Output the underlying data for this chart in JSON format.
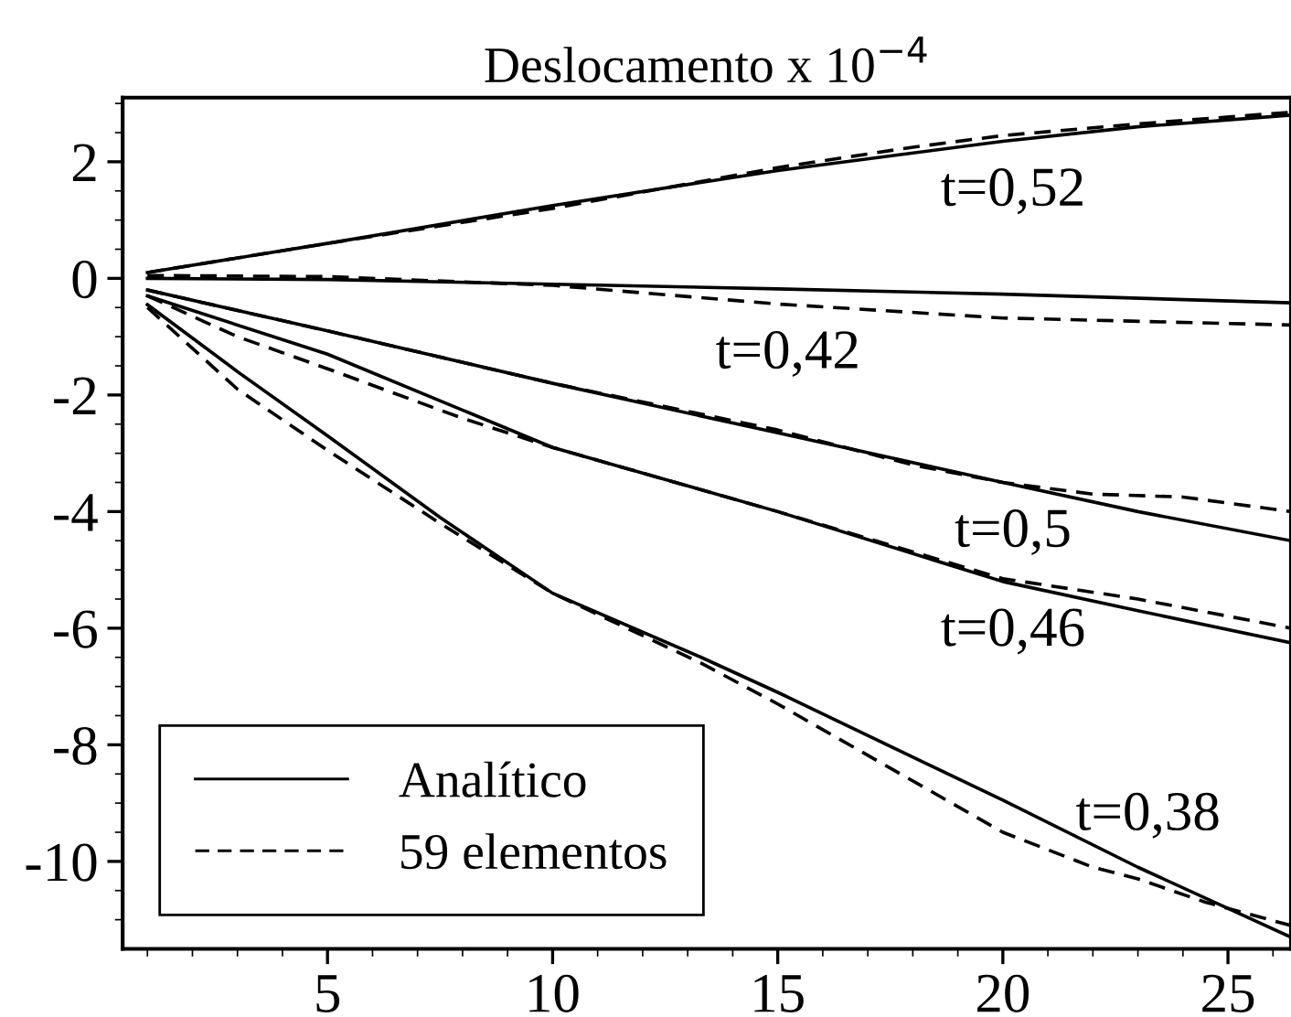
{
  "chart_data": {
    "type": "line",
    "title": "Deslocamento x 10$^{−4}$",
    "xlim": [
      0.45,
      26.4
    ],
    "ylim": [
      -11.5,
      3.1
    ],
    "xticks": [
      {
        "value": 1,
        "label": null
      },
      {
        "value": 2,
        "label": null
      },
      {
        "value": 3,
        "label": null
      },
      {
        "value": 4,
        "label": null
      },
      5,
      {
        "value": 6,
        "label": null
      },
      {
        "value": 7,
        "label": null
      },
      {
        "value": 8,
        "label": null
      },
      {
        "value": 9,
        "label": null
      },
      10,
      {
        "value": 11,
        "label": null
      },
      {
        "value": 12,
        "label": null
      },
      {
        "value": 13,
        "label": null
      },
      {
        "value": 14,
        "label": null
      },
      15,
      {
        "value": 16,
        "label": null
      },
      {
        "value": 17,
        "label": null
      },
      {
        "value": 18,
        "label": null
      },
      {
        "value": 19,
        "label": null
      },
      20,
      {
        "value": 21,
        "label": null
      },
      {
        "value": 22,
        "label": null
      },
      {
        "value": 23,
        "label": null
      },
      {
        "value": 24,
        "label": null
      },
      25,
      {
        "value": 26,
        "label": null
      }
    ],
    "yticks": [
      {
        "value": -11,
        "label": null
      },
      {
        "value": -10.5,
        "label": null
      },
      -10,
      {
        "value": -9.5,
        "label": null
      },
      {
        "value": -9,
        "label": null
      },
      {
        "value": -8.5,
        "label": null
      },
      -8,
      {
        "value": -7.5,
        "label": null
      },
      {
        "value": -7,
        "label": null
      },
      {
        "value": -6.5,
        "label": null
      },
      -6,
      {
        "value": -5.5,
        "label": null
      },
      {
        "value": -5,
        "label": null
      },
      {
        "value": -4.5,
        "label": null
      },
      -4,
      {
        "value": -3.5,
        "label": null
      },
      {
        "value": -3,
        "label": null
      },
      {
        "value": -2.5,
        "label": null
      },
      -2,
      {
        "value": -1.5,
        "label": null
      },
      {
        "value": -1,
        "label": null
      },
      {
        "value": -0.5,
        "label": null
      },
      0,
      {
        "value": 0.5,
        "label": null
      },
      {
        "value": 1,
        "label": null
      },
      {
        "value": 1.5,
        "label": null
      },
      2,
      {
        "value": 2.5,
        "label": null
      },
      {
        "value": 3,
        "label": null
      }
    ],
    "grid": false,
    "legend": "bottom left",
    "marker": "none",
    "series": [
      {
        "name": "Analítico",
        "color": "#000000",
        "line_style": "solid",
        "x": [
          1,
          5,
          10,
          15,
          20,
          23,
          26.4
        ],
        "values": [
          0.1,
          0.6,
          1.25,
          1.85,
          2.35,
          2.6,
          2.8
        ]
      },
      {
        "color": "#000000",
        "line_style": "solid",
        "x": [
          1,
          5,
          10,
          15,
          20,
          26.4
        ],
        "values": [
          0,
          -0.02,
          -0.1,
          -0.18,
          -0.27,
          -0.42
        ]
      },
      {
        "color": "#000000",
        "line_style": "solid",
        "x": [
          1,
          5,
          10,
          15,
          20,
          23,
          26.4
        ],
        "values": [
          -0.2,
          -0.9,
          -1.8,
          -2.65,
          -3.5,
          -4.0,
          -4.5
        ]
      },
      {
        "color": "#000000",
        "line_style": "solid",
        "x": [
          1,
          5,
          10,
          15,
          20,
          23,
          26.4
        ],
        "values": [
          -0.3,
          -1.3,
          -2.9,
          -4.0,
          -5.2,
          -5.7,
          -6.25
        ]
      },
      {
        "color": "#000000",
        "line_style": "solid",
        "x": [
          1,
          3,
          5,
          7.5,
          10,
          13.3,
          15,
          20,
          23,
          26.4
        ],
        "values": [
          -0.45,
          -1.6,
          -2.7,
          -4.1,
          -5.4,
          -6.5,
          -7.1,
          -8.95,
          -10.1,
          -11.3
        ]
      },
      {
        "name": "59 elementos",
        "color": "#000000",
        "line_style": "dashed",
        "x": [
          1,
          5,
          10,
          15,
          18,
          20,
          23,
          26.4
        ],
        "values": [
          0.1,
          0.6,
          1.2,
          1.9,
          2.25,
          2.45,
          2.65,
          2.85
        ]
      },
      {
        "color": "#000000",
        "line_style": "dashed",
        "x": [
          1,
          5,
          10,
          15,
          20,
          26.4
        ],
        "values": [
          0.05,
          0.03,
          -0.12,
          -0.44,
          -0.68,
          -0.8
        ]
      },
      {
        "color": "#000000",
        "line_style": "dashed",
        "x": [
          1,
          5,
          10,
          15,
          18,
          20,
          22,
          24,
          26.4
        ],
        "values": [
          -0.2,
          -0.9,
          -1.8,
          -2.6,
          -3.2,
          -3.5,
          -3.7,
          -3.75,
          -4.0
        ]
      },
      {
        "color": "#000000",
        "line_style": "dashed",
        "x": [
          1,
          3,
          5,
          8,
          10,
          15,
          20,
          23,
          26.4
        ],
        "values": [
          -0.3,
          -1.0,
          -1.55,
          -2.4,
          -2.9,
          -4.0,
          -5.15,
          -5.5,
          -6.0
        ]
      },
      {
        "color": "#000000",
        "line_style": "dashed",
        "x": [
          1,
          3,
          5,
          7.5,
          10,
          13.3,
          15,
          17.5,
          20,
          22,
          23,
          24.5,
          26.4
        ],
        "values": [
          -0.5,
          -1.9,
          -2.95,
          -4.2,
          -5.4,
          -6.6,
          -7.3,
          -8.4,
          -9.5,
          -10.1,
          -10.3,
          -10.7,
          -11.1
        ]
      }
    ],
    "annotations": [
      {
        "text": "t=0,52",
        "x": 20,
        "y": 2.35
      },
      {
        "text": "t=0,42",
        "x": 15,
        "y": -0.44
      },
      {
        "text": "t=0,5",
        "x": 20,
        "y": -3.5
      },
      {
        "text": "t=0,46",
        "x": 20,
        "y": -5.2
      },
      {
        "text": "t=0,38",
        "x": 23,
        "y": -10.1
      }
    ]
  }
}
